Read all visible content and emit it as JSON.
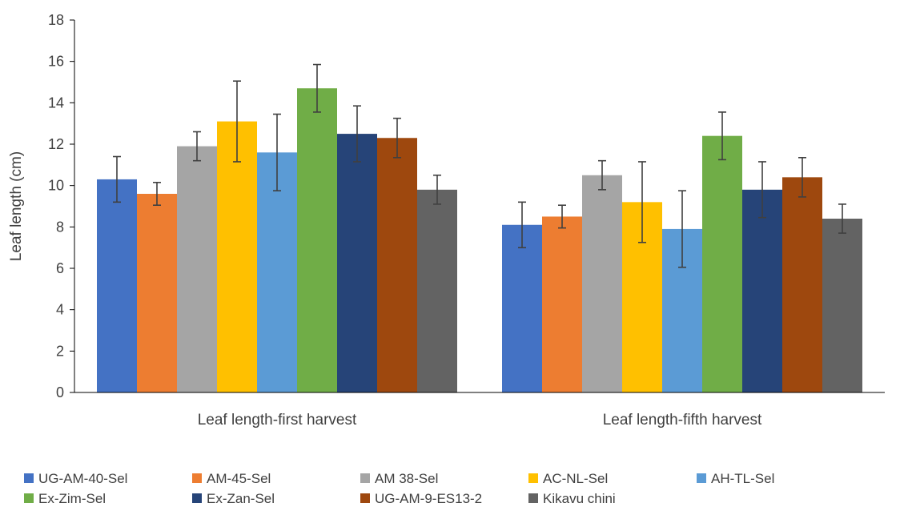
{
  "chart_data": {
    "type": "bar",
    "title": "",
    "xlabel": "",
    "ylabel": "Leaf length (cm)",
    "ylim": [
      0,
      18
    ],
    "yticks": [
      0,
      2,
      4,
      6,
      8,
      10,
      12,
      14,
      16,
      18
    ],
    "grid": false,
    "legend_position": "bottom",
    "error_bars": true,
    "categories": [
      "Leaf length-first harvest",
      "Leaf length-fifth harvest"
    ],
    "series": [
      {
        "name": "UG-AM-40-Sel",
        "color": "#4472C4",
        "values": [
          10.3,
          8.1
        ],
        "errors": [
          1.1,
          1.1
        ]
      },
      {
        "name": "AM-45-Sel",
        "color": "#ED7D31",
        "values": [
          9.6,
          8.5
        ],
        "errors": [
          0.55,
          0.55
        ]
      },
      {
        "name": "AM 38-Sel",
        "color": "#A5A5A5",
        "values": [
          11.9,
          10.5
        ],
        "errors": [
          0.7,
          0.7
        ]
      },
      {
        "name": "AC-NL-Sel",
        "color": "#FFC000",
        "values": [
          13.1,
          9.2
        ],
        "errors": [
          1.95,
          1.95
        ]
      },
      {
        "name": "AH-TL-Sel",
        "color": "#5B9BD5",
        "values": [
          11.6,
          7.9
        ],
        "errors": [
          1.85,
          1.85
        ]
      },
      {
        "name": "Ex-Zim-Sel",
        "color": "#70AD47",
        "values": [
          14.7,
          12.4
        ],
        "errors": [
          1.15,
          1.15
        ]
      },
      {
        "name": "Ex-Zan-Sel",
        "color": "#264478",
        "values": [
          12.5,
          9.8
        ],
        "errors": [
          1.35,
          1.35
        ]
      },
      {
        "name": "UG-AM-9-ES13-2",
        "color": "#9E480E",
        "values": [
          12.3,
          10.4
        ],
        "errors": [
          0.95,
          0.95
        ]
      },
      {
        "name": "Kikavu chini",
        "color": "#636363",
        "values": [
          9.8,
          8.4
        ],
        "errors": [
          0.7,
          0.7
        ]
      }
    ]
  }
}
